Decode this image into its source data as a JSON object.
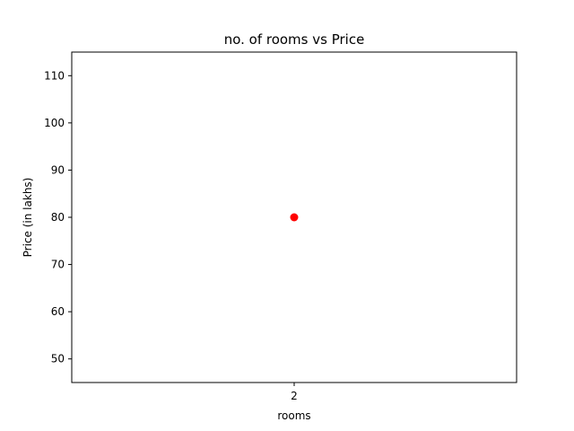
{
  "chart_data": {
    "type": "scatter",
    "title": "no. of rooms vs Price",
    "xlabel": "rooms",
    "ylabel": "Price (in lakhs)",
    "x_categories": [
      "2"
    ],
    "points": [
      {
        "x": "2",
        "y": 80
      }
    ],
    "ylim": [
      45,
      115
    ],
    "yticks": [
      50,
      60,
      70,
      80,
      90,
      100,
      110
    ],
    "grid": false,
    "legend": "none",
    "marker_color": "#ff0000"
  }
}
